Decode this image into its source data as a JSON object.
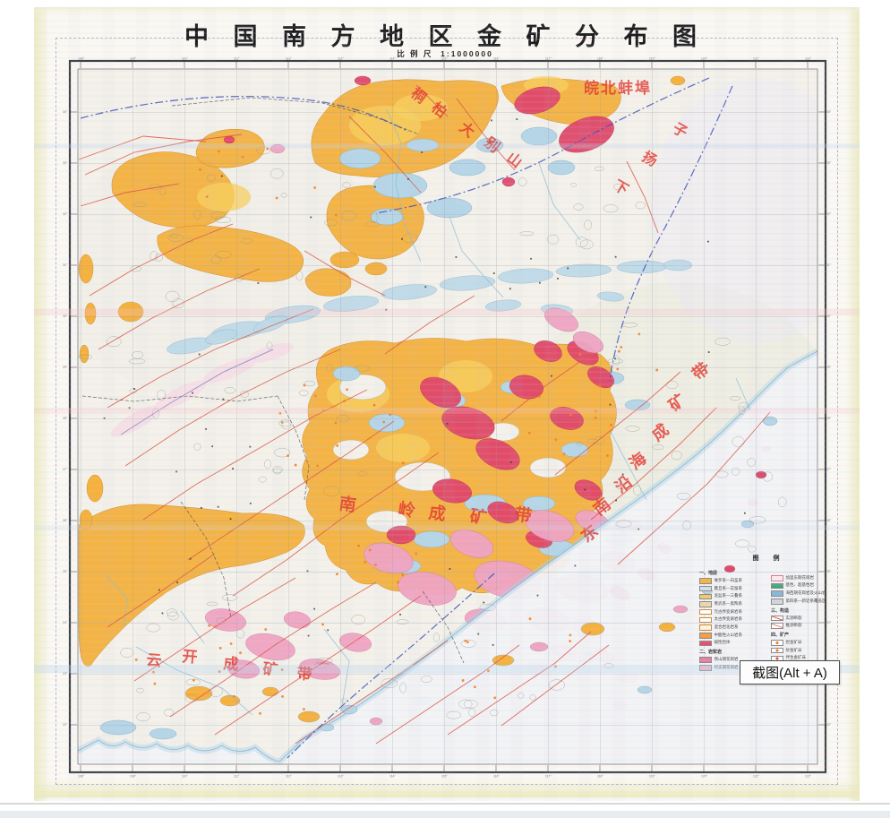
{
  "page": {
    "title": "中 国 南 方 地 区 金 矿 分 布 图",
    "scale_label": "比 例 尺",
    "scale_value": "1:1000000"
  },
  "tooltip": {
    "label": "截图(Alt + A)"
  },
  "map_labels": {
    "wanbei_bengbu": {
      "text": "皖北蚌埠"
    },
    "tongbai_dabieshan": {
      "text": "桐柏大别山",
      "chars": [
        "桐",
        "柏",
        "大",
        "别",
        "山"
      ]
    },
    "xia_yangzi": {
      "text": "下扬子",
      "chars": [
        "子",
        "扬",
        "下"
      ]
    },
    "nanling_belt": {
      "text": "南岭成矿带",
      "chars": [
        "南",
        "岭",
        "成",
        "矿",
        "带"
      ]
    },
    "dongnan_yanhai_belt": {
      "text": "东南沿海成矿带",
      "chars": [
        "东",
        "南",
        "沿",
        "海",
        "成",
        "矿",
        "带"
      ]
    },
    "yunkai_belt": {
      "text": "云开成矿带",
      "chars": [
        "云",
        "开",
        "成",
        "矿",
        "带"
      ]
    }
  },
  "graticule": {
    "lon_start": 108,
    "lon_step": 1,
    "lat_start": 34,
    "lat_step": -1,
    "unit": "°"
  },
  "legend": {
    "title": "图 例",
    "sec_strata": "一、地层",
    "sec_magma": "二、岩浆岩",
    "sec_structure": "三、构造",
    "sec_minerals": "四、矿产",
    "strata": [
      {
        "label": "侏罗系—白垩系",
        "color": "#f4b542"
      },
      {
        "label": "震旦系—志留系",
        "color": "#cfe0ea"
      },
      {
        "label": "泥盆系—三叠系",
        "color": "#f6c763"
      },
      {
        "label": "寒武系—奥陶系",
        "color": "#e9d8a8"
      },
      {
        "label": "元古界变质岩系",
        "color": "#ffffff"
      },
      {
        "label": "太古界变质岩系",
        "color": "#ffffff"
      },
      {
        "label": "混合岩化岩系",
        "color": "#fdf3e2"
      },
      {
        "label": "中酸性火山岩系",
        "color": "#f59a40"
      },
      {
        "label": "碱性岩体",
        "color": "#e8506e"
      }
    ],
    "magma": [
      {
        "label": "燕山期花岗岩",
        "color": "#e87f9f"
      },
      {
        "label": "印支期花岗岩",
        "color": "#f3b1c6"
      }
    ],
    "rocks2": [
      {
        "label": "加里东期花岗岩",
        "color": "#fbeaee"
      },
      {
        "label": "基性、超基性岩",
        "color": "#3fa97c"
      },
      {
        "label": "海西期花岗岩及火山岩",
        "color": "#86b8d8"
      },
      {
        "label": "第四系—新近系覆盖区",
        "color": "#ced6de"
      }
    ],
    "structure": [
      {
        "label": "实测断裂"
      },
      {
        "label": "推测断裂"
      }
    ],
    "minerals": [
      {
        "label": "岩金矿床"
      },
      {
        "label": "砂金矿床"
      },
      {
        "label": "伴生金矿床"
      },
      {
        "label": "金矿化点"
      }
    ]
  },
  "colors": {
    "fault_red": "#dc5244",
    "belt_label_red": "#e23a30",
    "boundary_blue": "#3b4fb8",
    "strata_orange": "#f5b13d",
    "granite_pink": "#f0a4c2",
    "volcanic_magenta": "#e0486a",
    "quaternary_blue": "#b5d6e7",
    "sea_wash": "#abd2e6",
    "paper": "#faf8f3"
  }
}
